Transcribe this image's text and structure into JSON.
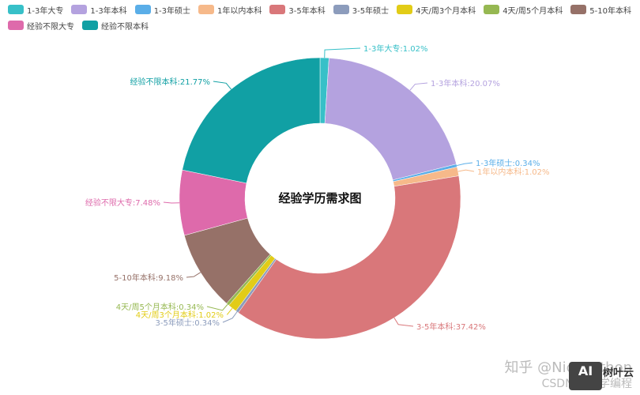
{
  "chart_data": {
    "type": "pie",
    "variant": "donut",
    "title": "经验学历需求图",
    "start_angle": "top, clockwise",
    "legend_position": "top-left",
    "categories": [
      "1-3年大专",
      "1-3年本科",
      "1-3年硕士",
      "1年以内本科",
      "3-5年本科",
      "3-5年硕士",
      "4天/周3个月本科",
      "4天/周5个月本科",
      "5-10年本科",
      "经验不限大专",
      "经验不限本科"
    ],
    "values": [
      1.02,
      20.07,
      0.34,
      1.02,
      37.42,
      0.34,
      1.02,
      0.34,
      9.18,
      7.48,
      21.77
    ],
    "unit": "%",
    "colors": [
      "#37c0c8",
      "#b4a2df",
      "#5aaee8",
      "#f6b98a",
      "#d9777a",
      "#8c9cbc",
      "#e2cc17",
      "#96b852",
      "#967168",
      "#de6aab",
      "#11a0a4"
    ],
    "labels": [
      "1-3年大专:1.02%",
      "1-3年本科:20.07%",
      "1-3年硕士:0.34%",
      "1年以内本科:1.02%",
      "3-5年本科:37.42%",
      "3-5年硕士:0.34%",
      "4天/周3个月本科:1.02%",
      "4天/周5个月本科:0.34%",
      "5-10年本科:9.18%",
      "经验不限大专:7.48%",
      "经验不限本科:21.77%"
    ]
  },
  "legend": {
    "row1": [
      "1-3年大专",
      "1-3年本科",
      "1-3年硕士",
      "1年以内本科",
      "3-5年本科",
      "3-5年硕士",
      "4天/周3个月本科",
      "4天/周5个月本科",
      "5-10年本科"
    ],
    "row2": [
      "经验不限大专",
      "经验不限本科"
    ]
  },
  "watermark": {
    "line1": "知乎 @NicePython",
    "line2": "CSDN @小学编程",
    "badge": "AI",
    "brand": "树叶云"
  }
}
